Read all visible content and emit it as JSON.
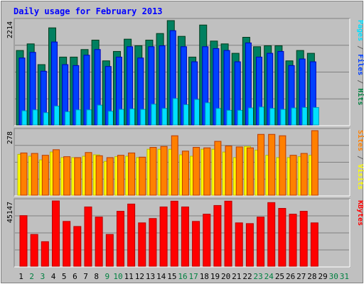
{
  "chart_data": [
    {
      "type": "bar",
      "title": "Daily usage for February 2013",
      "ymax_label": "2214",
      "ylabel_parts": [
        {
          "text": "Pages",
          "color": "#00e0ff"
        },
        {
          "text": " / ",
          "color": "#606060"
        },
        {
          "text": "Files",
          "color": "#0040ff"
        },
        {
          "text": " / ",
          "color": "#606060"
        },
        {
          "text": "Hits",
          "color": "#008040"
        }
      ],
      "categories": [
        "1",
        "2",
        "3",
        "4",
        "5",
        "6",
        "7",
        "8",
        "9",
        "10",
        "11",
        "12",
        "13",
        "14",
        "15",
        "16",
        "17",
        "18",
        "19",
        "20",
        "21",
        "22",
        "23",
        "24",
        "25",
        "26",
        "27",
        "28",
        "29",
        "30",
        "31"
      ],
      "series": [
        {
          "name": "Hits",
          "color": "#008060",
          "values": [
            1580,
            1720,
            1280,
            2060,
            1440,
            1440,
            1600,
            1800,
            1360,
            1560,
            1820,
            1680,
            1800,
            1940,
            2360,
            1880,
            1440,
            2120,
            1780,
            1720,
            1520,
            1860,
            1660,
            1680,
            1680,
            1360,
            1580,
            1520,
            0,
            0,
            0
          ]
        },
        {
          "name": "Files",
          "color": "#0040ff",
          "values": [
            1420,
            1540,
            1140,
            1760,
            1280,
            1260,
            1480,
            1600,
            1240,
            1440,
            1660,
            1420,
            1660,
            1680,
            2000,
            1660,
            1340,
            1660,
            1620,
            1580,
            1340,
            1740,
            1440,
            1520,
            1560,
            1260,
            1400,
            1340,
            0,
            0,
            0
          ]
        },
        {
          "name": "Pages",
          "color": "#00e0ff",
          "values": [
            300,
            320,
            260,
            400,
            280,
            320,
            320,
            420,
            290,
            330,
            340,
            330,
            440,
            350,
            560,
            430,
            540,
            470,
            350,
            310,
            310,
            360,
            380,
            350,
            330,
            360,
            370,
            370,
            0,
            0,
            0
          ]
        }
      ]
    },
    {
      "type": "bar",
      "ymax_label": "278",
      "ylabel_parts": [
        {
          "text": "Sites",
          "color": "#ff8000"
        },
        {
          "text": " / ",
          "color": "#606060"
        },
        {
          "text": "Visits",
          "color": "#ffff00"
        }
      ],
      "categories": [
        "1",
        "2",
        "3",
        "4",
        "5",
        "6",
        "7",
        "8",
        "9",
        "10",
        "11",
        "12",
        "13",
        "14",
        "15",
        "16",
        "17",
        "18",
        "19",
        "20",
        "21",
        "22",
        "23",
        "24",
        "25",
        "26",
        "27",
        "28",
        "29",
        "30",
        "31"
      ],
      "series": [
        {
          "name": "Visits",
          "color": "#ffff00",
          "values": [
            176,
            168,
            152,
            186,
            162,
            162,
            168,
            174,
            146,
            166,
            168,
            162,
            198,
            198,
            198,
            174,
            168,
            198,
            198,
            186,
            162,
            210,
            194,
            172,
            162,
            162,
            166,
            172,
            0,
            0,
            0
          ]
        },
        {
          "name": "Sites",
          "color": "#ff8000",
          "values": [
            182,
            180,
            172,
            196,
            166,
            162,
            184,
            170,
            162,
            172,
            182,
            164,
            206,
            210,
            256,
            190,
            206,
            204,
            232,
            212,
            208,
            204,
            262,
            262,
            256,
            172,
            180,
            280,
            0,
            0,
            0
          ]
        }
      ]
    },
    {
      "type": "bar",
      "ymax_label": "45147",
      "ylabel_parts": [
        {
          "text": "KBytes",
          "color": "#ff0000"
        }
      ],
      "categories": [
        "1",
        "2",
        "3",
        "4",
        "5",
        "6",
        "7",
        "8",
        "9",
        "10",
        "11",
        "12",
        "13",
        "14",
        "15",
        "16",
        "17",
        "18",
        "19",
        "20",
        "21",
        "22",
        "23",
        "24",
        "25",
        "26",
        "27",
        "28",
        "29",
        "30",
        "31"
      ],
      "series": [
        {
          "name": "KBytes",
          "color": "#ff0000",
          "values": [
            35000,
            22000,
            17000,
            46000,
            31000,
            27500,
            41000,
            34000,
            22000,
            38000,
            43000,
            30000,
            33000,
            41000,
            45000,
            41000,
            31000,
            36000,
            42000,
            45000,
            30000,
            29500,
            34000,
            44000,
            40000,
            36000,
            38000,
            30000,
            0,
            0,
            0
          ]
        }
      ]
    }
  ],
  "x_axis": {
    "labels": [
      "1",
      "2",
      "3",
      "4",
      "5",
      "6",
      "7",
      "8",
      "9",
      "10",
      "11",
      "12",
      "13",
      "14",
      "15",
      "16",
      "17",
      "18",
      "19",
      "20",
      "21",
      "22",
      "23",
      "24",
      "25",
      "26",
      "27",
      "28",
      "29",
      "30",
      "31"
    ],
    "weekend_days": [
      "2",
      "3",
      "9",
      "10",
      "16",
      "17",
      "23",
      "24",
      "30",
      "31"
    ],
    "weekday_color": "#000000",
    "weekend_color": "#008040"
  },
  "colors": {
    "background": "#c0c0c0",
    "panel": "#c0c0c0",
    "title": "#0000ff",
    "grid": "#808080",
    "outline": "#000000"
  }
}
